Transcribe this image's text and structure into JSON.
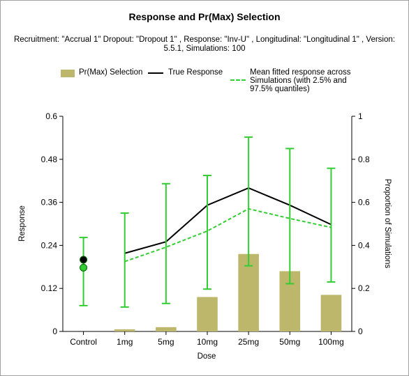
{
  "colors": {
    "bar": "#bdb76b",
    "true_response": "#000000",
    "fitted": "#32cd32",
    "axis": "#000000"
  },
  "chart_data": {
    "type": "bar",
    "title": "Response and Pr(Max) Selection",
    "subtitle": "Recruitment: \"Accrual 1\" Dropout: \"Dropout 1\" , Response: \"Inv-U\" , Longitudinal: \"Longitudinal 1\" , Version: 5.5.1, Simulations: 100",
    "xlabel": "Dose",
    "ylabel": "Response",
    "y2label": "Proportion of Simulations",
    "categories": [
      "Control",
      "1mg",
      "5mg",
      "10mg",
      "25mg",
      "50mg",
      "100mg"
    ],
    "ylim": [
      0,
      0.6
    ],
    "yticks": [
      "0",
      "0.12",
      "0.24",
      "0.36",
      "0.48",
      "0.6"
    ],
    "y2lim": [
      0,
      1
    ],
    "y2ticks": [
      "0",
      "0.2",
      "0.4",
      "0.6",
      "0.8",
      "1"
    ],
    "legend": {
      "bar": "Pr(Max) Selection",
      "true": "True Response",
      "fitted_lines": [
        "Mean fitted response across",
        "Simulations (with 2.5% and",
        "97.5% quantiles)"
      ]
    },
    "series": [
      {
        "name": "Pr(Max) Selection",
        "kind": "bar",
        "axis": "right",
        "values": [
          0,
          0.01,
          0.02,
          0.16,
          0.36,
          0.28,
          0.17
        ]
      },
      {
        "name": "True Response",
        "kind": "line",
        "axis": "left",
        "values": [
          0.2,
          0.218,
          0.25,
          0.352,
          0.4,
          0.352,
          0.298
        ]
      },
      {
        "name": "Mean fitted response across Simulations (with 2.5% and 97.5% quantiles)",
        "kind": "line-dashed-errorbar",
        "axis": "left",
        "values": [
          0.178,
          0.195,
          0.235,
          0.28,
          0.342,
          0.315,
          0.29
        ],
        "lower": [
          0.072,
          0.068,
          0.078,
          0.118,
          0.183,
          0.133,
          0.138
        ],
        "upper": [
          0.262,
          0.33,
          0.412,
          0.435,
          0.542,
          0.51,
          0.455
        ]
      }
    ]
  }
}
